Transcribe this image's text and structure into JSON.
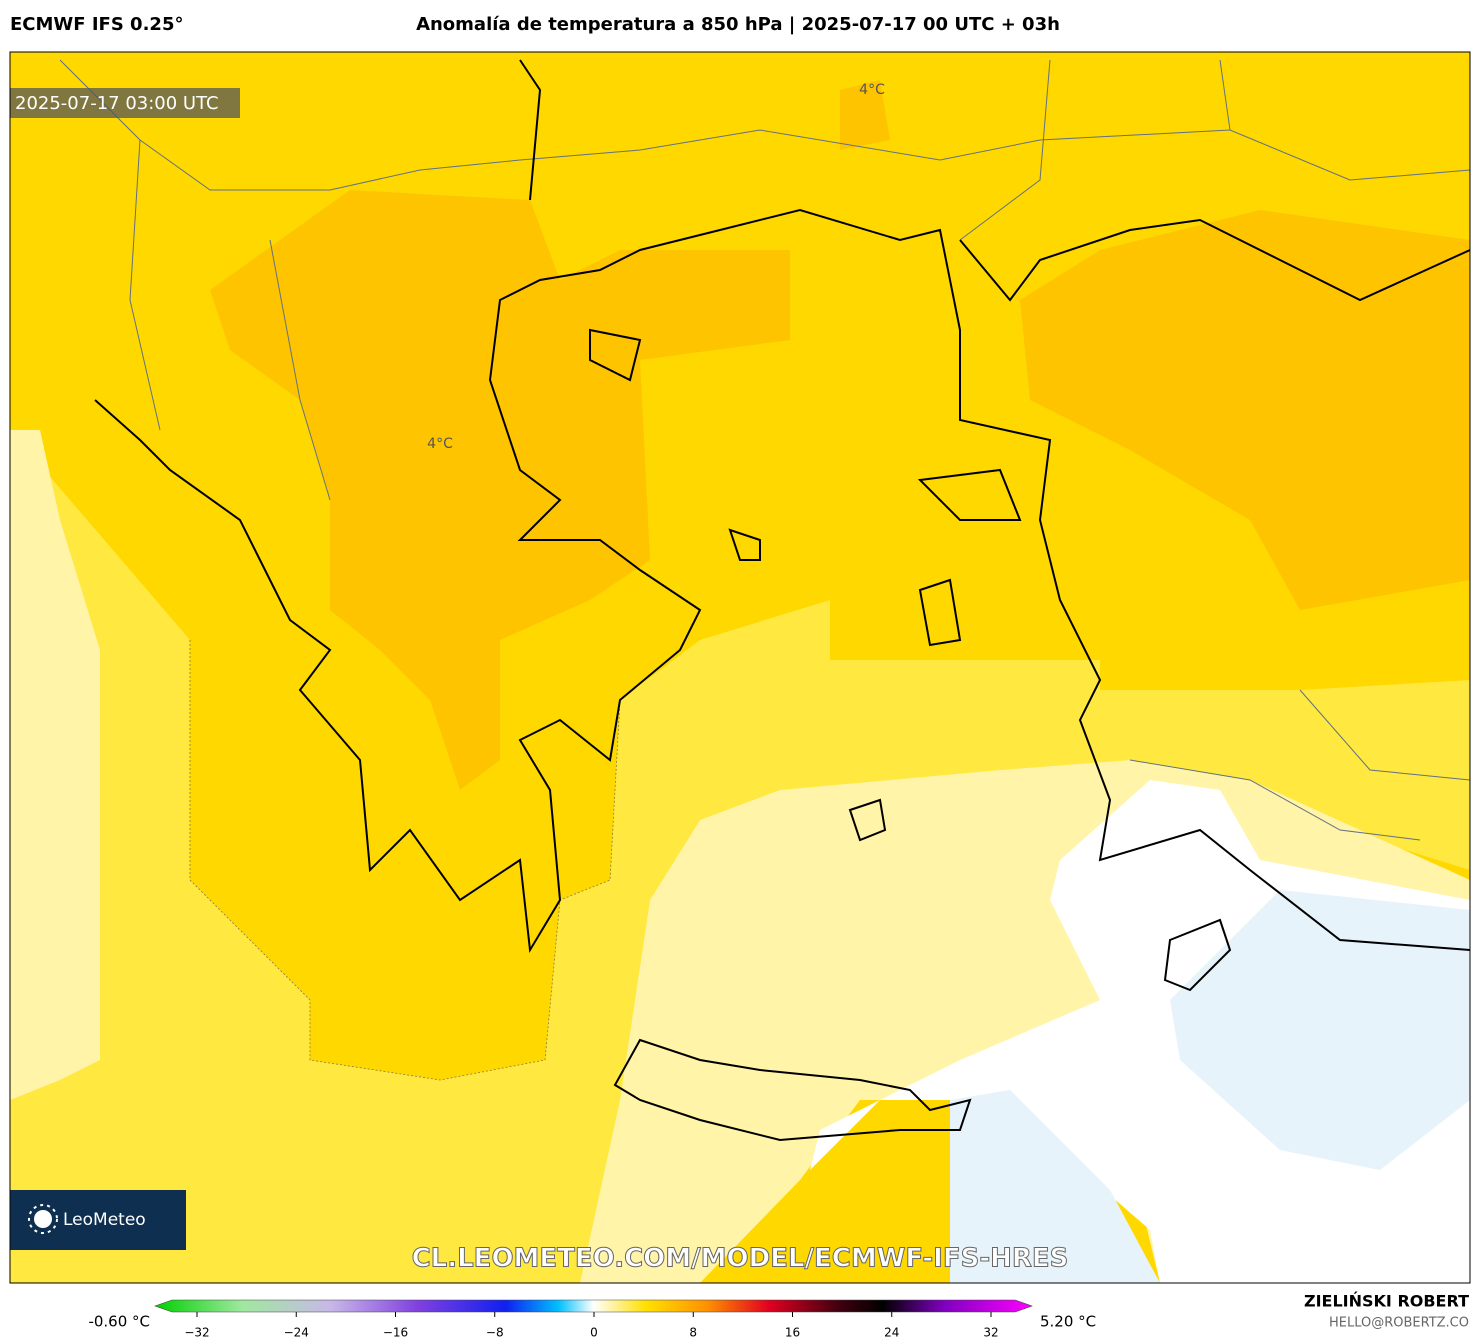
{
  "header": {
    "model": "ECMWF IFS 0.25°",
    "title": "Anomalía de temperatura a 850 hPa | 2025-07-17 00 UTC + 03h"
  },
  "map": {
    "valid_time": "2025-07-17 03:00 UTC",
    "contour_labels": [
      "4°C",
      "4°C"
    ],
    "logo": "LeoMeteo",
    "url": "CL.LEOMETEO.COM/MODEL/ECMWF-IFS-HRES"
  },
  "colorbar": {
    "min_label": "-0.60 °C",
    "max_label": "5.20 °C",
    "ticks": [
      {
        "value": -32,
        "label": "−32"
      },
      {
        "value": -24,
        "label": "−24"
      },
      {
        "value": -16,
        "label": "−16"
      },
      {
        "value": -8,
        "label": "−8"
      },
      0,
      8,
      16,
      24,
      32
    ]
  },
  "footer": {
    "author": "ZIELIŃSKI ROBERT",
    "email": "HELLO@ROBERTZ.CO"
  }
}
